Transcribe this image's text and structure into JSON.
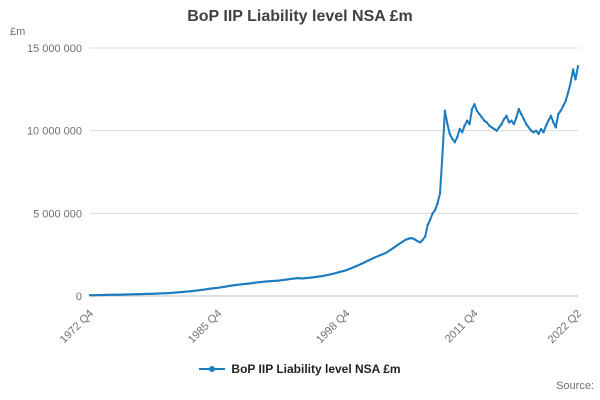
{
  "title": "BoP IIP Liability level NSA £m",
  "y_unit": "£m",
  "source_label": "Source:",
  "legend": {
    "label": "BoP IIP Liability level NSA £m"
  },
  "chart_data": {
    "type": "line",
    "title": "BoP IIP Liability level NSA £m",
    "series_name": "BoP IIP Liability level NSA £m",
    "xlabel": "",
    "ylabel": "£m",
    "ylim": [
      0,
      15000000
    ],
    "grid": "horizontal",
    "legend_position": "bottom",
    "line_color": "#1d7bbf",
    "x_frequency": "quarterly",
    "x_start": "1972 Q4",
    "x_end": "2022 Q2",
    "x_tick_labels": [
      "1972 Q4",
      "1985 Q4",
      "1998 Q4",
      "2011 Q4",
      "2022 Q2"
    ],
    "x_tick_indices": [
      0,
      52,
      104,
      156,
      198
    ],
    "y_ticks": [
      0,
      5000000,
      10000000,
      15000000
    ],
    "y_tick_labels": [
      "0",
      "5 000 000",
      "10 000 000",
      "15 000 000"
    ],
    "values": [
      40000,
      44000,
      48000,
      52000,
      56000,
      60000,
      64000,
      68000,
      72000,
      74000,
      76000,
      78000,
      80000,
      84000,
      88000,
      92000,
      96000,
      100000,
      104000,
      108000,
      112000,
      116000,
      120000,
      124000,
      128000,
      132000,
      138000,
      144000,
      150000,
      156000,
      162000,
      170000,
      178000,
      188000,
      198000,
      210000,
      222000,
      236000,
      250000,
      264000,
      278000,
      292000,
      308000,
      324000,
      340000,
      360000,
      380000,
      400000,
      430000,
      450000,
      470000,
      480000,
      500000,
      520000,
      545000,
      570000,
      600000,
      620000,
      640000,
      660000,
      680000,
      700000,
      715000,
      730000,
      745000,
      765000,
      785000,
      805000,
      825000,
      840000,
      855000,
      870000,
      885000,
      895000,
      905000,
      915000,
      925000,
      940000,
      960000,
      980000,
      1000000,
      1020000,
      1040000,
      1060000,
      1080000,
      1070000,
      1060000,
      1075000,
      1090000,
      1100000,
      1120000,
      1140000,
      1160000,
      1180000,
      1200000,
      1230000,
      1260000,
      1290000,
      1320000,
      1360000,
      1400000,
      1440000,
      1480000,
      1520000,
      1560000,
      1620000,
      1680000,
      1740000,
      1800000,
      1870000,
      1940000,
      2010000,
      2080000,
      2150000,
      2220000,
      2290000,
      2360000,
      2420000,
      2480000,
      2540000,
      2600000,
      2700000,
      2800000,
      2900000,
      3000000,
      3100000,
      3200000,
      3300000,
      3400000,
      3450000,
      3500000,
      3480000,
      3400000,
      3300000,
      3250000,
      3400000,
      3600000,
      4300000,
      4600000,
      5000000,
      5200000,
      5600000,
      6200000,
      8500000,
      11200000,
      10400000,
      9800000,
      9500000,
      9300000,
      9600000,
      10100000,
      9900000,
      10300000,
      10600000,
      10400000,
      11300000,
      11600000,
      11200000,
      11000000,
      10800000,
      10600000,
      10500000,
      10300000,
      10200000,
      10100000,
      10000000,
      10200000,
      10400000,
      10700000,
      10900000,
      10500000,
      10600000,
      10400000,
      10800000,
      11300000,
      11000000,
      10700000,
      10400000,
      10200000,
      10000000,
      9900000,
      10000000,
      9800000,
      10100000,
      9900000,
      10300000,
      10600000,
      10900000,
      10500000,
      10200000,
      11000000,
      11200000,
      11500000,
      11800000,
      12300000,
      12900000,
      13700000,
      13100000,
      13900000
    ]
  }
}
